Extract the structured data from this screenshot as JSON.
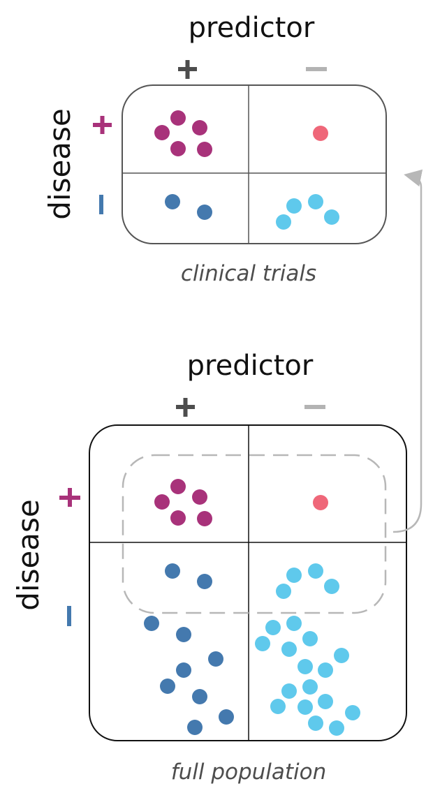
{
  "colors": {
    "predictor_plus": "#4d4d4d",
    "predictor_minus": "#b3b3b3",
    "disease_plus": "#a8327a",
    "disease_minus": "#4479ae",
    "true_positive": "#a8327a",
    "false_negative": "#ef6779",
    "false_positive": "#4479ae",
    "true_negative": "#5fc9ec",
    "connector": "#b7b7b7"
  },
  "top_panel": {
    "title": "predictor",
    "col_plus_symbol": "+",
    "col_minus_symbol": "−",
    "row_label": "disease",
    "row_plus_symbol": "+",
    "row_minus_symbol": "−",
    "caption": "clinical trials",
    "counts": {
      "true_positive": 5,
      "false_negative": 1,
      "false_positive": 2,
      "true_negative": 5
    }
  },
  "bottom_panel": {
    "title": "predictor",
    "col_plus_symbol": "+",
    "col_minus_symbol": "−",
    "row_label": "disease",
    "row_plus_symbol": "+",
    "row_minus_symbol": "−",
    "caption": "full population",
    "counts": {
      "true_positive": 5,
      "false_negative": 1,
      "false_positive": 12,
      "true_negative": 23
    }
  }
}
